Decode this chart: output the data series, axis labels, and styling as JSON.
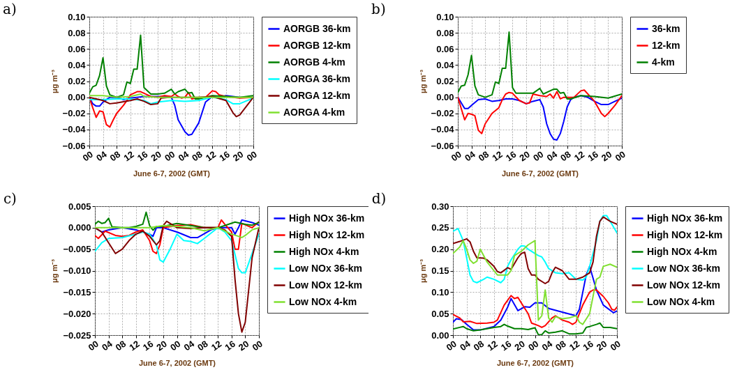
{
  "chart_data": [
    {
      "type": "line",
      "title": "a)",
      "xlabel": "June 6-7, 2002 (GMT)",
      "ylabel": "μg m⁻³",
      "xlim": [
        0,
        48
      ],
      "xticks": [
        {
          "value": 0,
          "label": "00"
        },
        {
          "value": 4,
          "label": "04"
        },
        {
          "value": 8,
          "label": "08"
        },
        {
          "value": 12,
          "label": "12"
        },
        {
          "value": 16,
          "label": "16"
        },
        {
          "value": 20,
          "label": "20"
        },
        {
          "value": 24,
          "label": "00"
        },
        {
          "value": 28,
          "label": "04"
        },
        {
          "value": 32,
          "label": "08"
        },
        {
          "value": 36,
          "label": "12"
        },
        {
          "value": 40,
          "label": "16"
        },
        {
          "value": 44,
          "label": "20"
        },
        {
          "value": 48,
          "label": "00"
        }
      ],
      "ylim": [
        -0.06,
        0.1
      ],
      "yticks": [
        {
          "value": -0.06,
          "label": "−0.06"
        },
        {
          "value": -0.04,
          "label": "−0.04"
        },
        {
          "value": -0.02,
          "label": "−0.02"
        },
        {
          "value": 0,
          "label": "0.00"
        },
        {
          "value": 0.02,
          "label": "0.02"
        },
        {
          "value": 0.04,
          "label": "0.04"
        },
        {
          "value": 0.06,
          "label": "0.06"
        },
        {
          "value": 0.08,
          "label": "0.08"
        },
        {
          "value": 0.1,
          "label": "0.10"
        }
      ],
      "grid": true,
      "legend": "right",
      "marker": "none",
      "line_style": "solid",
      "series": [
        {
          "name": "AORGB 36-km",
          "color": "#0000ff",
          "x": [
            0,
            1,
            2,
            3,
            4,
            6,
            8,
            10,
            12,
            14,
            16,
            18,
            20,
            22,
            24,
            25,
            26,
            28,
            29,
            30,
            32,
            34,
            36,
            38,
            40,
            44,
            48
          ],
          "values": [
            0,
            -0.008,
            -0.011,
            -0.011,
            -0.006,
            0,
            0,
            -0.003,
            -0.001,
            0,
            0.001,
            0.001,
            0.001,
            0.001,
            0,
            -0.01,
            -0.028,
            -0.043,
            -0.047,
            -0.046,
            -0.032,
            -0.006,
            0.001,
            0,
            0.002,
            0,
            0
          ]
        },
        {
          "name": "AORGB 12-km",
          "color": "#ff0000",
          "x": [
            0,
            1,
            2,
            3,
            4,
            5,
            6,
            7,
            8,
            10,
            11,
            12,
            14,
            15,
            16,
            18,
            20,
            22,
            24,
            25,
            26,
            27,
            28,
            29,
            30,
            32,
            34,
            36,
            37,
            38,
            40,
            44,
            48
          ],
          "values": [
            0,
            -0.013,
            -0.025,
            -0.017,
            -0.018,
            -0.034,
            -0.037,
            -0.028,
            -0.02,
            -0.01,
            -0.004,
            0.003,
            0.007,
            0.007,
            0.005,
            0.001,
            0,
            0.002,
            0.001,
            0.004,
            0.001,
            -0.001,
            0,
            0.006,
            -0.002,
            0,
            0,
            0.008,
            0.007,
            0.003,
            0.001,
            -0.001,
            0
          ]
        },
        {
          "name": "AORGB 4-km",
          "color": "#008000",
          "x": [
            0,
            1,
            2,
            3,
            4,
            5,
            6,
            8,
            10,
            11,
            12,
            13,
            14,
            15,
            16,
            18,
            20,
            22,
            24,
            25,
            26,
            28,
            29,
            30,
            31,
            32,
            36,
            40,
            44,
            48
          ],
          "values": [
            0.005,
            0.013,
            0.015,
            0.027,
            0.049,
            0.014,
            0.003,
            0,
            0.003,
            0.019,
            0.017,
            0.035,
            0.035,
            0.077,
            0.012,
            0.004,
            0.004,
            0.005,
            0.01,
            0.004,
            0.007,
            0.01,
            0.005,
            0.006,
            -0.002,
            -0.002,
            0.002,
            0.001,
            0,
            0.002
          ]
        },
        {
          "name": "AORGA 36-km",
          "color": "#00ffff",
          "x": [
            0,
            4,
            8,
            12,
            16,
            18,
            20,
            24,
            28,
            32,
            36,
            40,
            42,
            44,
            48
          ],
          "values": [
            -0.003,
            -0.003,
            -0.002,
            -0.002,
            -0.004,
            -0.008,
            -0.006,
            -0.004,
            -0.005,
            -0.004,
            0,
            -0.003,
            -0.008,
            -0.008,
            -0.001
          ]
        },
        {
          "name": "AORGA 12-km",
          "color": "#800000",
          "x": [
            0,
            4,
            6,
            8,
            12,
            14,
            16,
            18,
            20,
            21,
            24,
            28,
            32,
            36,
            40,
            42,
            43,
            44,
            46,
            48
          ],
          "values": [
            0,
            -0.004,
            -0.008,
            -0.007,
            -0.004,
            -0.002,
            -0.005,
            -0.009,
            -0.008,
            -0.001,
            0,
            0,
            0,
            0.001,
            -0.004,
            -0.019,
            -0.024,
            -0.022,
            -0.011,
            0
          ]
        },
        {
          "name": "AORGA 4-km",
          "color": "#80e030",
          "x": [
            0,
            4,
            8,
            12,
            15,
            16,
            20,
            24,
            32,
            40,
            48
          ],
          "values": [
            0.002,
            0.002,
            0,
            0.001,
            0.004,
            0.001,
            0,
            0,
            0,
            0,
            0
          ]
        }
      ]
    },
    {
      "type": "line",
      "title": "b)",
      "xlabel": "June 6-7, 2002 (GMT)",
      "ylabel": "μg m⁻³",
      "xlim": [
        0,
        48
      ],
      "xticks": [
        {
          "value": 0,
          "label": "00"
        },
        {
          "value": 4,
          "label": "04"
        },
        {
          "value": 8,
          "label": "08"
        },
        {
          "value": 12,
          "label": "12"
        },
        {
          "value": 16,
          "label": "16"
        },
        {
          "value": 20,
          "label": "20"
        },
        {
          "value": 24,
          "label": "00"
        },
        {
          "value": 28,
          "label": "04"
        },
        {
          "value": 32,
          "label": "08"
        },
        {
          "value": 36,
          "label": "12"
        },
        {
          "value": 40,
          "label": "16"
        },
        {
          "value": 44,
          "label": "20"
        },
        {
          "value": 48,
          "label": "00"
        }
      ],
      "ylim": [
        -0.06,
        0.1
      ],
      "yticks": [
        {
          "value": -0.06,
          "label": "−0.06"
        },
        {
          "value": -0.04,
          "label": "−0.04"
        },
        {
          "value": -0.02,
          "label": "−0.02"
        },
        {
          "value": 0,
          "label": "0.00"
        },
        {
          "value": 0.02,
          "label": "0.02"
        },
        {
          "value": 0.04,
          "label": "0.04"
        },
        {
          "value": 0.06,
          "label": "0.06"
        },
        {
          "value": 0.08,
          "label": "0.08"
        },
        {
          "value": 0.1,
          "label": "0.10"
        }
      ],
      "grid": true,
      "legend": "right",
      "marker": "none",
      "line_style": "solid",
      "series": [
        {
          "name": "36-km",
          "color": "#0000ff",
          "x": [
            0,
            2,
            3,
            4,
            6,
            8,
            10,
            12,
            14,
            16,
            18,
            20,
            22,
            24,
            25,
            26,
            27,
            28,
            29,
            30,
            31,
            32,
            33,
            34,
            36,
            38,
            40,
            42,
            44,
            46,
            48
          ],
          "values": [
            0,
            -0.014,
            -0.014,
            -0.01,
            -0.003,
            -0.002,
            -0.005,
            -0.004,
            -0.002,
            -0.002,
            -0.004,
            -0.008,
            -0.005,
            -0.003,
            -0.012,
            -0.033,
            -0.045,
            -0.052,
            -0.053,
            -0.045,
            -0.03,
            -0.012,
            -0.003,
            0,
            0.002,
            0,
            -0.005,
            -0.009,
            -0.009,
            -0.005,
            -0.001
          ]
        },
        {
          "name": "12-km",
          "color": "#ff0000",
          "x": [
            0,
            2,
            3,
            4,
            5,
            6,
            7,
            8,
            10,
            12,
            13,
            14,
            15,
            16,
            18,
            20,
            21,
            22,
            24,
            26,
            27,
            28,
            29,
            30,
            31,
            34,
            36,
            37,
            40,
            42,
            43,
            44,
            46,
            48
          ],
          "values": [
            0,
            -0.028,
            -0.02,
            -0.021,
            -0.023,
            -0.041,
            -0.045,
            -0.033,
            -0.02,
            -0.013,
            -0.003,
            0.004,
            0.006,
            0.005,
            -0.004,
            -0.008,
            -0.007,
            0.004,
            0.002,
            0.001,
            0.004,
            -0.001,
            0.007,
            -0.002,
            0,
            0,
            0.008,
            0.009,
            -0.005,
            -0.02,
            -0.024,
            -0.02,
            -0.01,
            0.002
          ]
        },
        {
          "name": "4-km",
          "color": "#008000",
          "x": [
            0,
            1,
            2,
            3,
            4,
            5,
            6,
            8,
            10,
            11,
            12,
            13,
            14,
            15,
            16,
            17,
            20,
            22,
            24,
            25,
            27,
            28,
            29,
            30,
            31,
            32,
            33,
            36,
            40,
            44,
            48
          ],
          "values": [
            0.006,
            0.014,
            0.015,
            0.028,
            0.052,
            0.014,
            0.003,
            0,
            0.003,
            0.019,
            0.017,
            0.036,
            0.036,
            0.081,
            0.012,
            0.005,
            0.005,
            0.005,
            0.011,
            0.004,
            0.008,
            0.01,
            0.01,
            0.005,
            0.006,
            -0.002,
            -0.002,
            0.002,
            0.001,
            -0.001,
            0.004
          ]
        }
      ]
    },
    {
      "type": "line",
      "title": "c)",
      "xlabel": "June 6-7, 2002 (GMT)",
      "ylabel": "μg m⁻³",
      "xlim": [
        0,
        48
      ],
      "xticks": [
        {
          "value": 0,
          "label": "00"
        },
        {
          "value": 4,
          "label": "04"
        },
        {
          "value": 8,
          "label": "08"
        },
        {
          "value": 12,
          "label": "12"
        },
        {
          "value": 16,
          "label": "16"
        },
        {
          "value": 20,
          "label": "20"
        },
        {
          "value": 24,
          "label": "00"
        },
        {
          "value": 28,
          "label": "04"
        },
        {
          "value": 32,
          "label": "08"
        },
        {
          "value": 36,
          "label": "12"
        },
        {
          "value": 40,
          "label": "16"
        },
        {
          "value": 44,
          "label": "20"
        },
        {
          "value": 48,
          "label": "00"
        }
      ],
      "ylim": [
        -0.025,
        0.005
      ],
      "yticks": [
        {
          "value": -0.025,
          "label": "−0.025"
        },
        {
          "value": -0.02,
          "label": "−0.020"
        },
        {
          "value": -0.015,
          "label": "−0.015"
        },
        {
          "value": -0.01,
          "label": "−0.010"
        },
        {
          "value": -0.005,
          "label": "−0.005"
        },
        {
          "value": 0,
          "label": "0.000"
        },
        {
          "value": 0.005,
          "label": "0.005"
        }
      ],
      "grid": true,
      "legend": "right",
      "marker": "none",
      "line_style": "solid",
      "series": [
        {
          "name": "High NOx 36-km",
          "color": "#0000ff",
          "x": [
            0,
            2,
            4,
            8,
            12,
            16,
            17,
            18,
            20,
            24,
            28,
            30,
            34,
            36,
            40,
            41,
            42,
            43,
            46,
            48
          ],
          "values": [
            0,
            -0.001,
            -0.0005,
            0,
            -0.0005,
            -0.0015,
            -0.002,
            0,
            0,
            -0.001,
            -0.0023,
            -0.0023,
            -0.0005,
            0,
            0,
            -0.0015,
            0,
            0.0018,
            0.0012,
            0.0006
          ]
        },
        {
          "name": "High NOx 12-km",
          "color": "#ff0000",
          "x": [
            0,
            1,
            3,
            6,
            8,
            10,
            12,
            14,
            16,
            17,
            18,
            19,
            20,
            24,
            28,
            32,
            36,
            37,
            38,
            40,
            41,
            42,
            43,
            46,
            48
          ],
          "values": [
            -0.0018,
            -0.0025,
            -0.0008,
            -0.0018,
            -0.002,
            -0.0018,
            -0.001,
            -0.0005,
            -0.003,
            -0.0055,
            -0.006,
            -0.004,
            0,
            0.0005,
            0.0007,
            0,
            0,
            0.0018,
            0.0008,
            -0.001,
            -0.005,
            -0.005,
            0.001,
            0,
            0.0014
          ]
        },
        {
          "name": "High NOx 4-km",
          "color": "#008000",
          "x": [
            0,
            1,
            2,
            3,
            4,
            5,
            8,
            10,
            12,
            14,
            15,
            16,
            17,
            18,
            20,
            24,
            28,
            32,
            36,
            38,
            41,
            44,
            46,
            48
          ],
          "values": [
            0.0008,
            0.0015,
            0.001,
            0.0012,
            0.0022,
            0.0002,
            0,
            0,
            0.0003,
            0.0008,
            0.0036,
            0.0005,
            -0.0006,
            0.0003,
            0.0003,
            0.001,
            0.0005,
            0,
            0,
            0.0005,
            0.0013,
            0.0008,
            0.0006,
            0.0012
          ]
        },
        {
          "name": "Low NOx 36-km",
          "color": "#00ffff",
          "x": [
            0,
            2,
            4,
            8,
            12,
            14,
            16,
            18,
            19,
            20,
            22,
            24,
            26,
            28,
            30,
            32,
            36,
            38,
            40,
            42,
            43,
            44,
            46,
            48
          ],
          "values": [
            -0.0055,
            -0.0035,
            -0.0025,
            -0.0023,
            -0.0015,
            -0.001,
            -0.0015,
            -0.004,
            -0.0075,
            -0.008,
            -0.005,
            -0.0015,
            -0.003,
            -0.0032,
            -0.0037,
            -0.0025,
            0,
            -0.001,
            -0.003,
            -0.0095,
            -0.0105,
            -0.0105,
            -0.006,
            -0.0015
          ]
        },
        {
          "name": "Low NOx 12-km",
          "color": "#800000",
          "x": [
            0,
            2,
            4,
            6,
            8,
            10,
            12,
            14,
            16,
            18,
            19,
            20,
            21,
            24,
            28,
            32,
            36,
            38,
            40,
            41,
            42,
            43,
            44,
            46,
            48
          ],
          "values": [
            0,
            -0.001,
            -0.0035,
            -0.006,
            -0.005,
            -0.003,
            -0.0015,
            -0.0008,
            -0.002,
            -0.004,
            -0.003,
            0.0005,
            0.0015,
            0,
            -0.0002,
            0,
            0,
            -0.0005,
            -0.002,
            -0.012,
            -0.02,
            -0.0243,
            -0.022,
            -0.007,
            0
          ]
        },
        {
          "name": "Low NOx 4-km",
          "color": "#80e030",
          "x": [
            0,
            8,
            12,
            16,
            20,
            24,
            28,
            32,
            36,
            40,
            42,
            43,
            44,
            46,
            48
          ],
          "values": [
            0,
            0,
            0,
            0,
            0.0005,
            0.0003,
            0,
            -0.0007,
            0,
            -0.0015,
            -0.002,
            -0.0023,
            -0.0018,
            -0.0005,
            0
          ]
        }
      ]
    },
    {
      "type": "line",
      "title": "d)",
      "xlabel": "June 6-7, 2002 (GMT)",
      "ylabel": "μg m⁻³",
      "xlim": [
        0,
        48
      ],
      "xticks": [
        {
          "value": 0,
          "label": "00"
        },
        {
          "value": 4,
          "label": "04"
        },
        {
          "value": 8,
          "label": "08"
        },
        {
          "value": 12,
          "label": "12"
        },
        {
          "value": 16,
          "label": "16"
        },
        {
          "value": 20,
          "label": "20"
        },
        {
          "value": 24,
          "label": "00"
        },
        {
          "value": 28,
          "label": "04"
        },
        {
          "value": 32,
          "label": "08"
        },
        {
          "value": 36,
          "label": "12"
        },
        {
          "value": 40,
          "label": "16"
        },
        {
          "value": 44,
          "label": "20"
        },
        {
          "value": 48,
          "label": "00"
        }
      ],
      "ylim": [
        0,
        0.3
      ],
      "yticks": [
        {
          "value": 0,
          "label": "0.00"
        },
        {
          "value": 0.05,
          "label": "0.05"
        },
        {
          "value": 0.1,
          "label": "0.10"
        },
        {
          "value": 0.15,
          "label": "0.15"
        },
        {
          "value": 0.2,
          "label": "0.20"
        },
        {
          "value": 0.25,
          "label": "0.25"
        },
        {
          "value": 0.3,
          "label": "0.30"
        }
      ],
      "grid": true,
      "legend": "right",
      "marker": "none",
      "line_style": "solid",
      "series": [
        {
          "name": "High NOx 36-km",
          "color": "#0000ff",
          "x": [
            0,
            1,
            2.5,
            4,
            6,
            8,
            12,
            14,
            16,
            17,
            19,
            21,
            22.5,
            24,
            26,
            28,
            36,
            37,
            39,
            40,
            42,
            44,
            47,
            48
          ],
          "values": [
            0.03,
            0.038,
            0.036,
            0.025,
            0.012,
            0.012,
            0.02,
            0.035,
            0.065,
            0.085,
            0.057,
            0.066,
            0.065,
            0.075,
            0.075,
            0.062,
            0.045,
            0.06,
            0.14,
            0.16,
            0.105,
            0.07,
            0.052,
            0.056
          ]
        },
        {
          "name": "High NOx 12-km",
          "color": "#ff0000",
          "x": [
            0,
            2,
            3,
            5,
            7,
            10,
            12,
            13,
            15,
            17,
            18,
            19,
            20,
            22,
            23,
            25,
            26,
            27,
            29,
            30,
            32,
            34,
            35,
            36,
            37,
            38,
            40,
            41,
            42,
            44,
            45.5,
            46.5,
            47.3,
            48
          ],
          "values": [
            0.048,
            0.04,
            0.031,
            0.032,
            0.027,
            0.028,
            0.03,
            0.035,
            0.07,
            0.092,
            0.085,
            0.088,
            0.075,
            0.05,
            0.028,
            0.022,
            0.018,
            0.022,
            0.04,
            0.045,
            0.035,
            0.03,
            0.025,
            0.03,
            0.05,
            0.07,
            0.1,
            0.105,
            0.105,
            0.09,
            0.075,
            0.06,
            0.058,
            0.065
          ]
        },
        {
          "name": "High NOx 4-km",
          "color": "#008000",
          "x": [
            0,
            2,
            3,
            4,
            6,
            8,
            12,
            14,
            15,
            16,
            18,
            20,
            22,
            24,
            25,
            26,
            27,
            28,
            30,
            32,
            34,
            36,
            38,
            39,
            40,
            42,
            43,
            44,
            46,
            48
          ],
          "values": [
            0.014,
            0.018,
            0.02,
            0.015,
            0.01,
            0.012,
            0.018,
            0.02,
            0.025,
            0.021,
            0.015,
            0.015,
            0.013,
            0.017,
            0.001,
            0.001,
            0.01,
            0.005,
            0.007,
            0.01,
            0.003,
            0.003,
            0.005,
            0.018,
            0.02,
            0.025,
            0.028,
            0.018,
            0.018,
            0.015
          ]
        },
        {
          "name": "Low NOx 36-km",
          "color": "#00ffff",
          "x": [
            0,
            1.5,
            3,
            4,
            5,
            6,
            7,
            9,
            10,
            12,
            14,
            15,
            16,
            17,
            19,
            20,
            21,
            22,
            24,
            25,
            26,
            27,
            28,
            30,
            32,
            34,
            36,
            38,
            39,
            40,
            42,
            43,
            44,
            45,
            46,
            48
          ],
          "values": [
            0.242,
            0.248,
            0.22,
            0.18,
            0.14,
            0.125,
            0.122,
            0.13,
            0.135,
            0.13,
            0.122,
            0.13,
            0.16,
            0.175,
            0.2,
            0.208,
            0.207,
            0.2,
            0.19,
            0.185,
            0.182,
            0.17,
            0.155,
            0.145,
            0.143,
            0.145,
            0.13,
            0.128,
            0.135,
            0.16,
            0.22,
            0.265,
            0.278,
            0.278,
            0.265,
            0.238
          ]
        },
        {
          "name": "Low NOx 12-km",
          "color": "#800000",
          "x": [
            0,
            2,
            4,
            5,
            6,
            7,
            9,
            10,
            12,
            13,
            14,
            16,
            17,
            19,
            20,
            21,
            22,
            23,
            24,
            25,
            27,
            28,
            29,
            30,
            32,
            34,
            36,
            38,
            39,
            40,
            41,
            42,
            43,
            44,
            46,
            48
          ],
          "values": [
            0.213,
            0.218,
            0.224,
            0.217,
            0.195,
            0.18,
            0.179,
            0.175,
            0.16,
            0.148,
            0.145,
            0.157,
            0.153,
            0.18,
            0.19,
            0.193,
            0.155,
            0.14,
            0.14,
            0.13,
            0.12,
            0.125,
            0.145,
            0.158,
            0.15,
            0.13,
            0.13,
            0.135,
            0.14,
            0.145,
            0.17,
            0.23,
            0.265,
            0.275,
            0.265,
            0.258
          ]
        },
        {
          "name": "Low NOx 4-km",
          "color": "#80e030",
          "x": [
            0,
            2,
            3,
            4,
            5,
            6,
            7,
            8,
            10,
            12,
            13,
            16,
            17,
            18,
            20,
            22,
            24,
            25,
            26,
            27,
            28,
            29,
            30,
            32,
            34,
            36,
            37,
            38,
            40,
            41,
            42,
            43,
            44,
            46,
            48
          ],
          "values": [
            0.19,
            0.205,
            0.22,
            0.2,
            0.175,
            0.167,
            0.172,
            0.2,
            0.17,
            0.15,
            0.14,
            0.14,
            0.15,
            0.185,
            0.195,
            0.21,
            0.22,
            0.035,
            0.045,
            0.105,
            0.04,
            0.03,
            0.043,
            0.038,
            0.04,
            0.045,
            0.03,
            0.025,
            0.05,
            0.09,
            0.13,
            0.135,
            0.16,
            0.165,
            0.158
          ]
        }
      ]
    }
  ]
}
